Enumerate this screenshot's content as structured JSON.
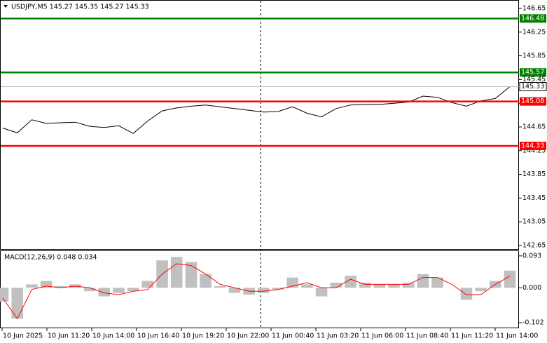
{
  "chart_data": [
    {
      "type": "line",
      "title": "USDJPY,M5  145.27 145.35 145.27 145.33",
      "ylim": [
        142.59,
        146.78
      ],
      "yticks": [
        146.65,
        146.25,
        145.85,
        145.45,
        145.05,
        144.65,
        144.25,
        143.85,
        143.45,
        143.05,
        142.65
      ],
      "x_labels": [
        "10 Jun 2025",
        "10 Jun 11:20",
        "10 Jun 14:00",
        "10 Jun 16:40",
        "10 Jun 19:20",
        "10 Jun 22:00",
        "11 Jun 00:40",
        "11 Jun 03:20",
        "11 Jun 06:00",
        "11 Jun 08:40",
        "11 Jun 11:20",
        "11 Jun 14:00"
      ],
      "levels": [
        {
          "value": 146.48,
          "color": "#008000"
        },
        {
          "value": 145.57,
          "color": "#008000"
        },
        {
          "value": 145.08,
          "color": "#ff0000"
        },
        {
          "value": 144.33,
          "color": "#ff0000"
        }
      ],
      "current": 145.33,
      "color": "#000000",
      "grid": false,
      "values": [
        144.63,
        144.55,
        144.77,
        144.71,
        144.72,
        144.73,
        144.66,
        144.64,
        144.67,
        144.54,
        144.75,
        144.92,
        144.97,
        145.0,
        145.02,
        144.99,
        144.96,
        144.93,
        144.9,
        144.91,
        144.99,
        144.88,
        144.82,
        144.96,
        145.02,
        145.03,
        145.03,
        145.05,
        145.07,
        145.17,
        145.15,
        145.06,
        145.0,
        145.09,
        145.13,
        145.33
      ]
    },
    {
      "type": "macd",
      "title": "MACD(12,26,9) 0.048 0.034",
      "ylim": [
        -0.116,
        0.107
      ],
      "yticks": [
        0.093,
        {
          "value": 0,
          "label": "0.000"
        },
        -0.102
      ],
      "histogram": {
        "color": "#c0c0c0",
        "values": [
          -0.04,
          -0.09,
          0.01,
          0.02,
          0.005,
          0.01,
          -0.01,
          -0.025,
          -0.015,
          -0.01,
          0.02,
          0.08,
          0.09,
          0.075,
          0.04,
          0.005,
          -0.015,
          -0.02,
          -0.015,
          -0.005,
          0.03,
          0.01,
          -0.025,
          0.015,
          0.035,
          0.015,
          0.01,
          0.01,
          0.015,
          0.04,
          0.03,
          0.0,
          -0.035,
          -0.01,
          0.02,
          0.05
        ]
      },
      "signal": {
        "color": "#ff0000",
        "values": [
          -0.03,
          -0.09,
          -0.005,
          0.005,
          0.0,
          0.005,
          0.0,
          -0.015,
          -0.02,
          -0.01,
          -0.005,
          0.04,
          0.07,
          0.065,
          0.04,
          0.01,
          0.0,
          -0.01,
          -0.01,
          -0.005,
          0.005,
          0.015,
          0.0,
          0.0,
          0.025,
          0.01,
          0.01,
          0.01,
          0.01,
          0.03,
          0.03,
          0.01,
          -0.02,
          -0.02,
          0.01,
          0.034
        ]
      }
    }
  ]
}
